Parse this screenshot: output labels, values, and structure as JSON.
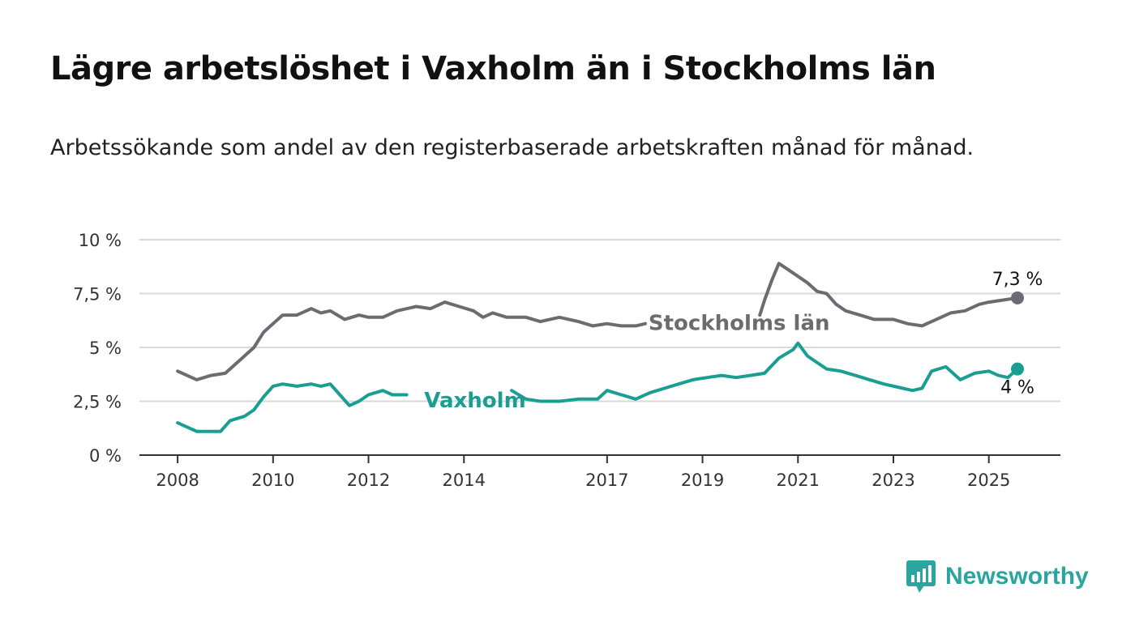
{
  "title": "Lägre arbetslöshet i Vaxholm än i Stockholms län",
  "subtitle": "Arbetssökande som andel av den registerbaserade arbetskraften månad för månad.",
  "brand": {
    "name": "Newsworthy",
    "icon": "bar-chart-speech-bubble-icon",
    "color": "#2aa5a0"
  },
  "chart_data": {
    "type": "line",
    "title": "Lägre arbetslöshet i Vaxholm än i Stockholms län",
    "subtitle": "Arbetssökande som andel av den registerbaserade arbetskraften månad för månad.",
    "xlabel": "",
    "ylabel": "",
    "ylim": [
      0,
      10
    ],
    "yticks": [
      0,
      2.5,
      5,
      7.5,
      10
    ],
    "ytick_labels": [
      "0 %",
      "2,5 %",
      "5 %",
      "7,5 %",
      "10 %"
    ],
    "xticks": [
      2008,
      2010,
      2012,
      2014,
      2017,
      2019,
      2021,
      2023,
      2025
    ],
    "xtick_labels": [
      "2008",
      "2010",
      "2012",
      "2014",
      "2017",
      "2019",
      "2021",
      "2023",
      "2025"
    ],
    "xlim": [
      2007.2,
      2026.5
    ],
    "grid": "horizontal",
    "legend": "inline labels",
    "series": [
      {
        "name": "Stockholms län",
        "color": "#6b6b72",
        "end_label": "7,3 %",
        "label_at": 2017.8,
        "points": [
          [
            2008.0,
            3.9
          ],
          [
            2008.4,
            3.5
          ],
          [
            2008.7,
            3.7
          ],
          [
            2009.0,
            3.8
          ],
          [
            2009.3,
            4.4
          ],
          [
            2009.6,
            5.0
          ],
          [
            2009.8,
            5.7
          ],
          [
            2010.0,
            6.1
          ],
          [
            2010.2,
            6.5
          ],
          [
            2010.5,
            6.5
          ],
          [
            2010.8,
            6.8
          ],
          [
            2011.0,
            6.6
          ],
          [
            2011.2,
            6.7
          ],
          [
            2011.5,
            6.3
          ],
          [
            2011.8,
            6.5
          ],
          [
            2012.0,
            6.4
          ],
          [
            2012.3,
            6.4
          ],
          [
            2012.6,
            6.7
          ],
          [
            2013.0,
            6.9
          ],
          [
            2013.3,
            6.8
          ],
          [
            2013.6,
            7.1
          ],
          [
            2013.9,
            6.9
          ],
          [
            2014.2,
            6.7
          ],
          [
            2014.4,
            6.4
          ],
          [
            2014.6,
            6.6
          ],
          [
            2014.9,
            6.4
          ],
          [
            2015.3,
            6.4
          ],
          [
            2015.6,
            6.2
          ],
          [
            2016.0,
            6.4
          ],
          [
            2016.4,
            6.2
          ],
          [
            2016.7,
            6.0
          ],
          [
            2017.0,
            6.1
          ],
          [
            2017.3,
            6.0
          ],
          [
            2017.6,
            6.0
          ],
          [
            2017.8,
            6.1
          ],
          [
            2020.2,
            6.5
          ],
          [
            2020.3,
            7.2
          ],
          [
            2020.45,
            8.1
          ],
          [
            2020.6,
            8.9
          ],
          [
            2020.8,
            8.6
          ],
          [
            2021.0,
            8.3
          ],
          [
            2021.2,
            8.0
          ],
          [
            2021.4,
            7.6
          ],
          [
            2021.6,
            7.5
          ],
          [
            2021.8,
            7.0
          ],
          [
            2022.0,
            6.7
          ],
          [
            2022.3,
            6.5
          ],
          [
            2022.6,
            6.3
          ],
          [
            2023.0,
            6.3
          ],
          [
            2023.3,
            6.1
          ],
          [
            2023.6,
            6.0
          ],
          [
            2023.9,
            6.3
          ],
          [
            2024.2,
            6.6
          ],
          [
            2024.5,
            6.7
          ],
          [
            2024.8,
            7.0
          ],
          [
            2025.0,
            7.1
          ],
          [
            2025.3,
            7.2
          ],
          [
            2025.6,
            7.3
          ]
        ]
      },
      {
        "name": "Vaxholm",
        "color": "#1a9e91",
        "end_label": "4 %",
        "label_at": 2013.1,
        "points": [
          [
            2008.0,
            1.5
          ],
          [
            2008.2,
            1.3
          ],
          [
            2008.4,
            1.1
          ],
          [
            2008.6,
            1.1
          ],
          [
            2008.9,
            1.1
          ],
          [
            2009.1,
            1.6
          ],
          [
            2009.4,
            1.8
          ],
          [
            2009.6,
            2.1
          ],
          [
            2009.8,
            2.7
          ],
          [
            2010.0,
            3.2
          ],
          [
            2010.2,
            3.3
          ],
          [
            2010.5,
            3.2
          ],
          [
            2010.8,
            3.3
          ],
          [
            2011.0,
            3.2
          ],
          [
            2011.2,
            3.3
          ],
          [
            2011.4,
            2.8
          ],
          [
            2011.6,
            2.3
          ],
          [
            2011.8,
            2.5
          ],
          [
            2012.0,
            2.8
          ],
          [
            2012.3,
            3.0
          ],
          [
            2012.5,
            2.8
          ],
          [
            2012.8,
            2.8
          ],
          [
            2015.0,
            3.0
          ],
          [
            2015.3,
            2.6
          ],
          [
            2015.6,
            2.5
          ],
          [
            2016.0,
            2.5
          ],
          [
            2016.4,
            2.6
          ],
          [
            2016.8,
            2.6
          ],
          [
            2017.0,
            3.0
          ],
          [
            2017.3,
            2.8
          ],
          [
            2017.6,
            2.6
          ],
          [
            2017.9,
            2.9
          ],
          [
            2018.2,
            3.1
          ],
          [
            2018.5,
            3.3
          ],
          [
            2018.8,
            3.5
          ],
          [
            2019.1,
            3.6
          ],
          [
            2019.4,
            3.7
          ],
          [
            2019.7,
            3.6
          ],
          [
            2020.0,
            3.7
          ],
          [
            2020.3,
            3.8
          ],
          [
            2020.6,
            4.5
          ],
          [
            2020.9,
            4.9
          ],
          [
            2021.0,
            5.2
          ],
          [
            2021.2,
            4.6
          ],
          [
            2021.4,
            4.3
          ],
          [
            2021.6,
            4.0
          ],
          [
            2021.9,
            3.9
          ],
          [
            2022.2,
            3.7
          ],
          [
            2022.5,
            3.5
          ],
          [
            2022.8,
            3.3
          ],
          [
            2023.2,
            3.1
          ],
          [
            2023.4,
            3.0
          ],
          [
            2023.6,
            3.1
          ],
          [
            2023.8,
            3.9
          ],
          [
            2024.1,
            4.1
          ],
          [
            2024.4,
            3.5
          ],
          [
            2024.7,
            3.8
          ],
          [
            2025.0,
            3.9
          ],
          [
            2025.2,
            3.7
          ],
          [
            2025.4,
            3.6
          ],
          [
            2025.6,
            4.0
          ]
        ]
      }
    ]
  }
}
